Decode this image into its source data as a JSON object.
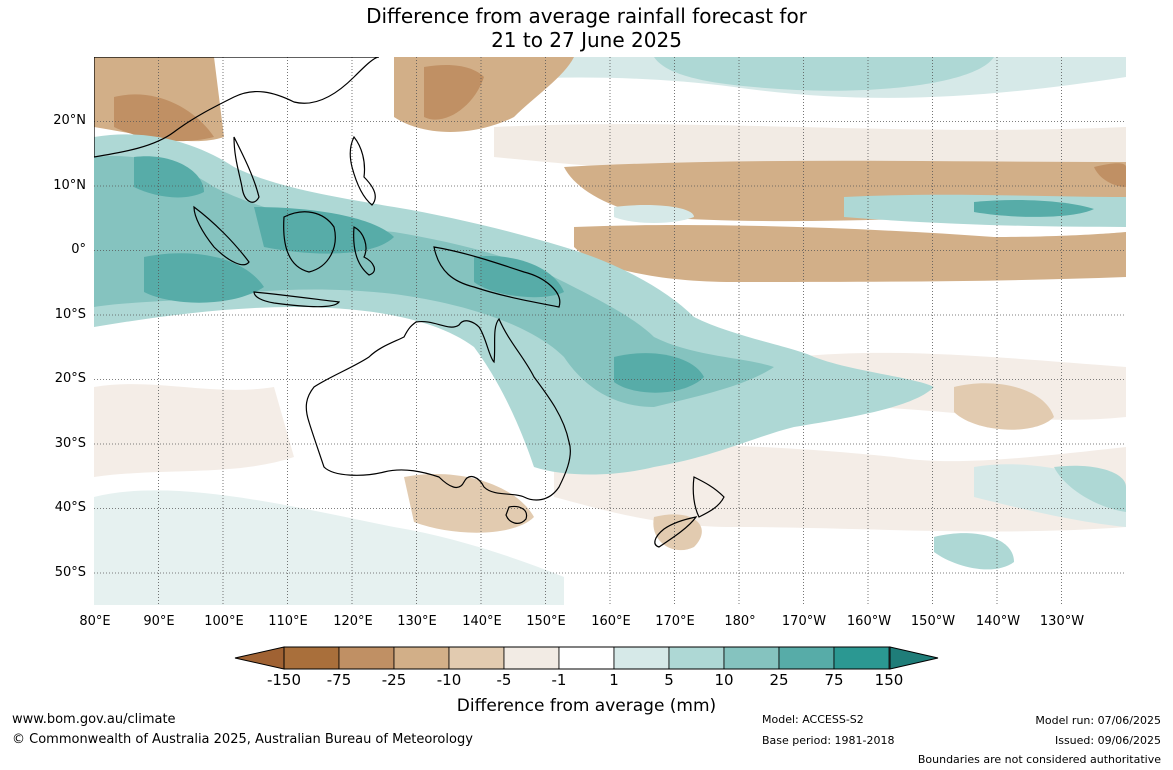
{
  "title": {
    "line1": "Difference from average rainfall forecast for",
    "line2": "21 to 27 June 2025"
  },
  "map": {
    "type": "forecast-anomaly-map",
    "region": "Australasia and western Pacific",
    "lat_labels": [
      "20°N",
      "10°N",
      "0°",
      "10°S",
      "20°S",
      "30°S",
      "40°S",
      "50°S"
    ],
    "lon_labels": [
      "80°E",
      "90°E",
      "100°E",
      "110°E",
      "120°E",
      "130°E",
      "140°E",
      "150°E",
      "160°E",
      "170°E",
      "180°",
      "170°W",
      "160°W",
      "150°W",
      "140°W",
      "130°W"
    ],
    "lat_range": [
      -55,
      30
    ],
    "lon_range": [
      80,
      240
    ]
  },
  "colorbar": {
    "tick_labels": [
      "-150",
      "-75",
      "-25",
      "-10",
      "-5",
      "-1",
      "1",
      "5",
      "10",
      "25",
      "75",
      "150"
    ],
    "colors": [
      "#a96f3b",
      "#c09064",
      "#d2af88",
      "#e2cbb0",
      "#f2ebe4",
      "#ffffff",
      "#d6e9e8",
      "#aed8d5",
      "#85c3bf",
      "#57aca8",
      "#2b9892"
    ],
    "title": "Difference from average (mm)"
  },
  "footer": {
    "website": "www.bom.gov.au/climate",
    "copyright": "© Commonwealth of Australia 2025, Australian Bureau of Meteorology",
    "model": "Model: ACCESS-S2",
    "base_period": "Base period: 1981-2018",
    "model_run": "Model run: 07/06/2025",
    "issued": "Issued: 09/06/2025",
    "disclaimer": "Boundaries are not considered authoritative"
  }
}
